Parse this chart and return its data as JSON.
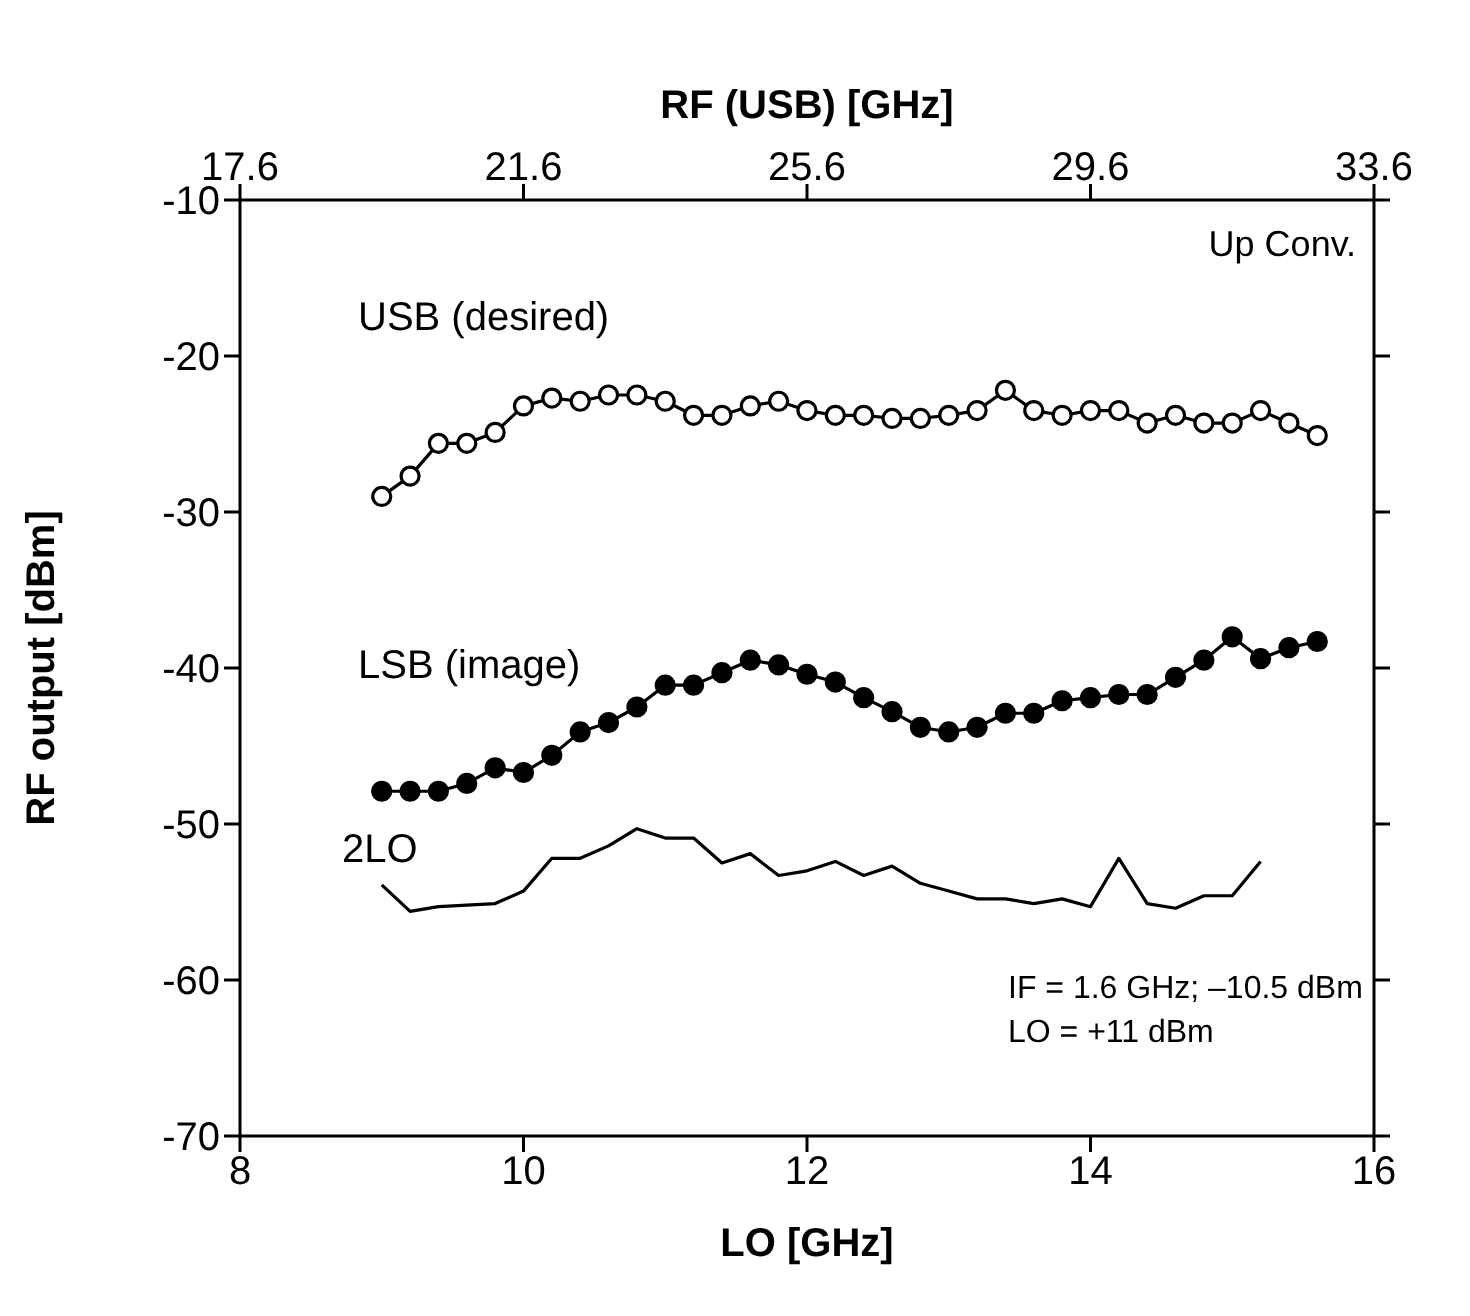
{
  "chart_data": {
    "type": "line",
    "xlabel": "LO [GHz]",
    "ylabel": "RF output [dBm]",
    "x2label": "RF (USB) [GHz]",
    "x": [
      9.0,
      9.2,
      9.4,
      9.6,
      9.8,
      10.0,
      10.2,
      10.4,
      10.6,
      10.8,
      11.0,
      11.2,
      11.4,
      11.6,
      11.8,
      12.0,
      12.2,
      12.4,
      12.6,
      12.8,
      13.0,
      13.2,
      13.4,
      13.6,
      13.8,
      14.0,
      14.2,
      14.4,
      14.6,
      14.8,
      15.0,
      15.2,
      15.4,
      15.6
    ],
    "series": [
      {
        "name": "USB (desired)",
        "color": "#000000",
        "marker": "circle",
        "values": [
          -29.0,
          -27.7,
          -25.6,
          -25.6,
          -24.9,
          -23.2,
          -22.7,
          -22.9,
          -22.5,
          -22.5,
          -22.9,
          -23.8,
          -23.8,
          -23.2,
          -22.9,
          -23.5,
          -23.8,
          -23.8,
          -24.0,
          -24.0,
          -23.8,
          -23.5,
          -22.2,
          -23.5,
          -23.8,
          -23.5,
          -23.5,
          -24.3,
          -23.8,
          -24.3,
          -24.3,
          -23.5,
          -24.3,
          -25.1
        ]
      },
      {
        "name": "LSB (image)",
        "color": "#000000",
        "marker": "circle",
        "values": [
          -47.9,
          -47.9,
          -47.9,
          -47.4,
          -46.4,
          -46.7,
          -45.6,
          -44.1,
          -43.5,
          -42.5,
          -41.1,
          -41.1,
          -40.3,
          -39.5,
          -39.8,
          -40.4,
          -40.9,
          -41.9,
          -42.8,
          -43.8,
          -44.1,
          -43.8,
          -42.9,
          -42.9,
          -42.1,
          -41.9,
          -41.7,
          -41.7,
          -40.6,
          -39.5,
          -38.0,
          -39.4,
          -38.7,
          -38.3
        ]
      },
      {
        "name": "2LO",
        "color": "#000000",
        "marker": "none",
        "values": [
          -53.9,
          -55.6,
          -55.3,
          -55.2,
          -55.1,
          -54.3,
          -52.2,
          -52.2,
          -51.4,
          -50.3,
          -50.9,
          -50.9,
          -52.5,
          -51.9,
          -53.3,
          -53.0,
          -52.4,
          -53.3,
          -52.7,
          -53.8,
          -54.3,
          -54.8,
          -54.8,
          -55.1,
          -54.8,
          -55.3,
          -52.2,
          -55.1,
          -55.4,
          -54.6,
          -54.6,
          -52.4,
          null,
          null
        ]
      }
    ],
    "xlim": [
      8,
      16
    ],
    "xticks": [
      8,
      10,
      12,
      14,
      16
    ],
    "ylim": [
      -70,
      -10
    ],
    "yticks": [
      -70,
      -60,
      -50,
      -40,
      -30,
      -20,
      -10
    ],
    "x2lim": [
      17.6,
      33.6
    ],
    "x2ticks": [
      17.6,
      21.6,
      25.6,
      29.6,
      33.6
    ],
    "annotations": [
      "Up Conv.",
      "IF = 1.6 GHz; –10.5 dBm",
      "LO = +11 dBm"
    ],
    "grid": false,
    "line_style": "solid"
  }
}
